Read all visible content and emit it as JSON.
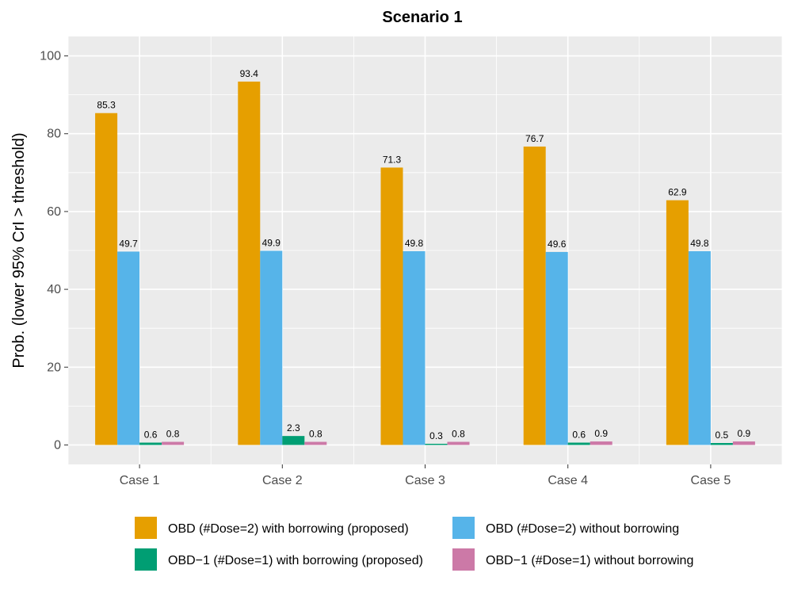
{
  "chart_data": {
    "type": "bar",
    "title": "Scenario 1",
    "xlabel": "",
    "ylabel": "Prob. (lower 95% CrI > threshold)",
    "ylim": [
      -5,
      105
    ],
    "yticks": [
      0,
      20,
      40,
      60,
      80,
      100
    ],
    "categories": [
      "Case 1",
      "Case 2",
      "Case 3",
      "Case 4",
      "Case 5"
    ],
    "series": [
      {
        "name": "OBD (#Dose=2) with borrowing (proposed)",
        "color": "#E69F00",
        "values": [
          85.3,
          93.4,
          71.3,
          76.7,
          62.9
        ],
        "labels": [
          "85.3",
          "93.4",
          "71.3",
          "76.7",
          "62.9"
        ]
      },
      {
        "name": "OBD (#Dose=2) without borrowing",
        "color": "#56B4E9",
        "values": [
          49.7,
          49.9,
          49.8,
          49.6,
          49.8
        ],
        "labels": [
          "49.7",
          "49.9",
          "49.8",
          "49.6",
          "49.8"
        ]
      },
      {
        "name": "OBD−1 (#Dose=1) with borrowing (proposed)",
        "color": "#009E73",
        "values": [
          0.6,
          2.3,
          0.3,
          0.6,
          0.5
        ],
        "labels": [
          "0.6",
          "2.3",
          "0.3",
          "0.6",
          "0.5"
        ]
      },
      {
        "name": "OBD−1 (#Dose=1) without borrowing",
        "color": "#CC79A7",
        "values": [
          0.8,
          0.8,
          0.8,
          0.9,
          0.9
        ],
        "labels": [
          "0.8",
          "0.8",
          "0.8",
          "0.9",
          "0.9"
        ]
      }
    ],
    "grid": true,
    "legend_position": "bottom"
  }
}
